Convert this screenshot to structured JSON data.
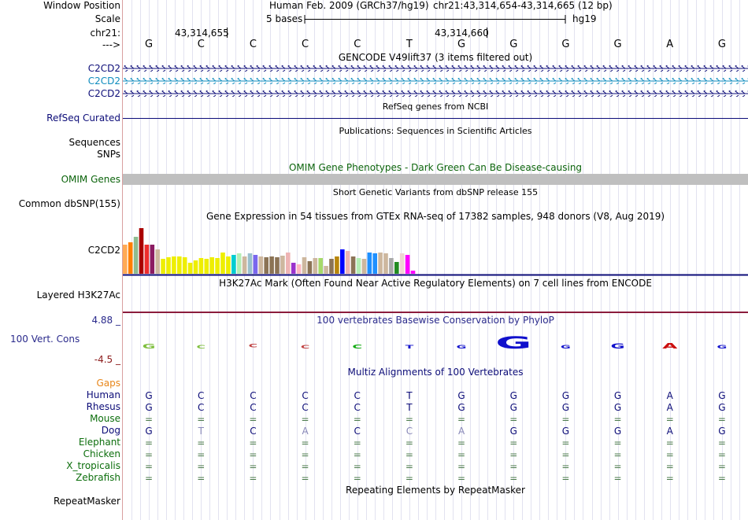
{
  "header": {
    "window_position_label": "Window Position",
    "scale_label": "Scale",
    "chrom_label": "chr21:",
    "arrow_label": "--->",
    "assembly": "Human Feb. 2009 (GRCh37/hg19)",
    "position": "chr21:43,314,654-43,314,665 (12 bp)",
    "scale_text": "5 bases",
    "db": "hg19",
    "coord_1": "43,314,655",
    "coord_2": "43,314,660"
  },
  "sequence": [
    "G",
    "C",
    "C",
    "C",
    "C",
    "T",
    "G",
    "G",
    "G",
    "G",
    "A",
    "G"
  ],
  "tracks": {
    "gencode_title": "GENCODE V49lift37 (3 items filtered out)",
    "gencode_items": [
      "C2CD2",
      "C2CD2",
      "C2CD2"
    ],
    "refseq_title": "RefSeq genes from NCBI",
    "refseq_label": "RefSeq Curated",
    "pubs_title": "Publications: Sequences in Scientific Articles",
    "sequences_label": "Sequences",
    "snps_label": "SNPs",
    "omim_title": "OMIM Gene Phenotypes - Dark Green Can Be Disease-causing",
    "omim_label": "OMIM Genes",
    "dbsnp_title": "Short Genetic Variants from dbSNP release 155",
    "dbsnp_label": "Common dbSNP(155)",
    "gtex_title": "Gene Expression in 54 tissues from GTEx RNA-seq of 17382 samples, 948 donors (V8, Aug 2019)",
    "gtex_label": "C2CD2",
    "h3k27_title": "H3K27Ac Mark (Often Found Near Active Regulatory Elements) on 7 cell lines from ENCODE",
    "h3k27_label": "Layered H3K27Ac",
    "phylop_title": "100 vertebrates Basewise Conservation by PhyloP",
    "phylop_label": "100 Vert. Cons",
    "phylop_max": "4.88 _",
    "phylop_min": "-4.5 _",
    "multiz_title": "Multiz Alignments of 100 Vertebrates",
    "repeat_title": "Repeating Elements by RepeatMasker",
    "repeat_label": "RepeatMasker"
  },
  "gtex_values": [
    0.58,
    0.62,
    0.74,
    0.9,
    0.58,
    0.58,
    0.48,
    0.3,
    0.33,
    0.35,
    0.35,
    0.33,
    0.22,
    0.27,
    0.32,
    0.3,
    0.33,
    0.31,
    0.42,
    0.35,
    0.38,
    0.4,
    0.34,
    0.4,
    0.38,
    0.35,
    0.33,
    0.35,
    0.33,
    0.36,
    0.42,
    0.22,
    0.18,
    0.33,
    0.25,
    0.32,
    0.31,
    0.15,
    0.29,
    0.34,
    0.48,
    0.45,
    0.34,
    0.31,
    0.3,
    0.42,
    0.4,
    0.42,
    0.4,
    0.32,
    0.24,
    0.4,
    0.38,
    0.07
  ],
  "gtex_colors": [
    "#FFAA55",
    "#FF7F00",
    "#8FBC8F",
    "#AA0000",
    "#EE2C2C",
    "#8B1C62",
    "#CDB79E",
    "#EEEE00",
    "#EEEE00",
    "#EEEE00",
    "#EEEE00",
    "#EEEE00",
    "#EEEE00",
    "#EEEE00",
    "#EEEE00",
    "#EEEE00",
    "#EEEE00",
    "#EEEE00",
    "#EEEE00",
    "#EEEE00",
    "#00CED1",
    "#B4EEB4",
    "#CDB79E",
    "#9AC0CD",
    "#7A67EE",
    "#CDB79E",
    "#8B7355",
    "#8B7355",
    "#8B7355",
    "#CDB79E",
    "#EEB4B4",
    "#9A32CD",
    "#FFB6C1",
    "#CDB79E",
    "#8B7355",
    "#CDB79E",
    "#A6D96A",
    "#CDB79E",
    "#8B7355",
    "#B8860B",
    "#0000FF",
    "#EEB4B4",
    "#8B7355",
    "#B4EEB4",
    "#CDB79E",
    "#1E90FF",
    "#1E90FF",
    "#CDB79E",
    "#CDB79E",
    "#A9A9A9",
    "#228B22",
    "#EED5D2",
    "#FF00FF",
    "#FF00FF"
  ],
  "phylop_values": [
    0.16,
    0.05,
    -0.05,
    0.1,
    0.12,
    0.1,
    0.05,
    0.62,
    0.08,
    0.18,
    0.22,
    0.0
  ],
  "species": [
    {
      "name": "Gaps",
      "color": "#E8861A",
      "bases": [
        "",
        "",
        "",
        "",
        "",
        "",
        "",
        "",
        "",
        "",
        "",
        ""
      ]
    },
    {
      "name": "Human",
      "color": "#0C0C78",
      "bases": [
        "G",
        "C",
        "C",
        "C",
        "C",
        "T",
        "G",
        "G",
        "G",
        "G",
        "A",
        "G"
      ]
    },
    {
      "name": "Rhesus",
      "color": "#0C0C78",
      "bases": [
        "G",
        "C",
        "C",
        "C",
        "C",
        "T",
        "G",
        "G",
        "G",
        "G",
        "A",
        "G"
      ]
    },
    {
      "name": "Mouse",
      "color": "#0C6E0C",
      "bases": [
        "=",
        "=",
        "=",
        "=",
        "=",
        "=",
        "=",
        "=",
        "=",
        "=",
        "=",
        "="
      ]
    },
    {
      "name": "Dog",
      "color": "#0C0C78",
      "bases": [
        "G",
        "T",
        "C",
        "A",
        "C",
        "C",
        "A",
        "G",
        "G",
        "G",
        "A",
        "G"
      ]
    },
    {
      "name": "Elephant",
      "color": "#0C6E0C",
      "bases": [
        "=",
        "=",
        "=",
        "=",
        "=",
        "=",
        "=",
        "=",
        "=",
        "=",
        "=",
        "="
      ]
    },
    {
      "name": "Chicken",
      "color": "#0C6E0C",
      "bases": [
        "=",
        "=",
        "=",
        "=",
        "=",
        "=",
        "=",
        "=",
        "=",
        "=",
        "=",
        "="
      ]
    },
    {
      "name": "X_tropicalis",
      "color": "#0C6E0C",
      "bases": [
        "=",
        "=",
        "=",
        "=",
        "=",
        "=",
        "=",
        "=",
        "=",
        "=",
        "=",
        "="
      ]
    },
    {
      "name": "Zebrafish",
      "color": "#0C6E0C",
      "bases": [
        "=",
        "=",
        "=",
        "=",
        "=",
        "=",
        "=",
        "=",
        "=",
        "=",
        "=",
        "="
      ]
    }
  ],
  "colors": {
    "gencode_dark": "#0C0C78",
    "gencode_teal": "#0F8CBE",
    "omim": "#0C640C",
    "h3k27_line": "#8B1C3C",
    "phylop": "#2A2A8C",
    "phylop_min": "#8B1A1A",
    "grid": "#CFCFE6",
    "gutter_line": "#D9A0A0"
  }
}
